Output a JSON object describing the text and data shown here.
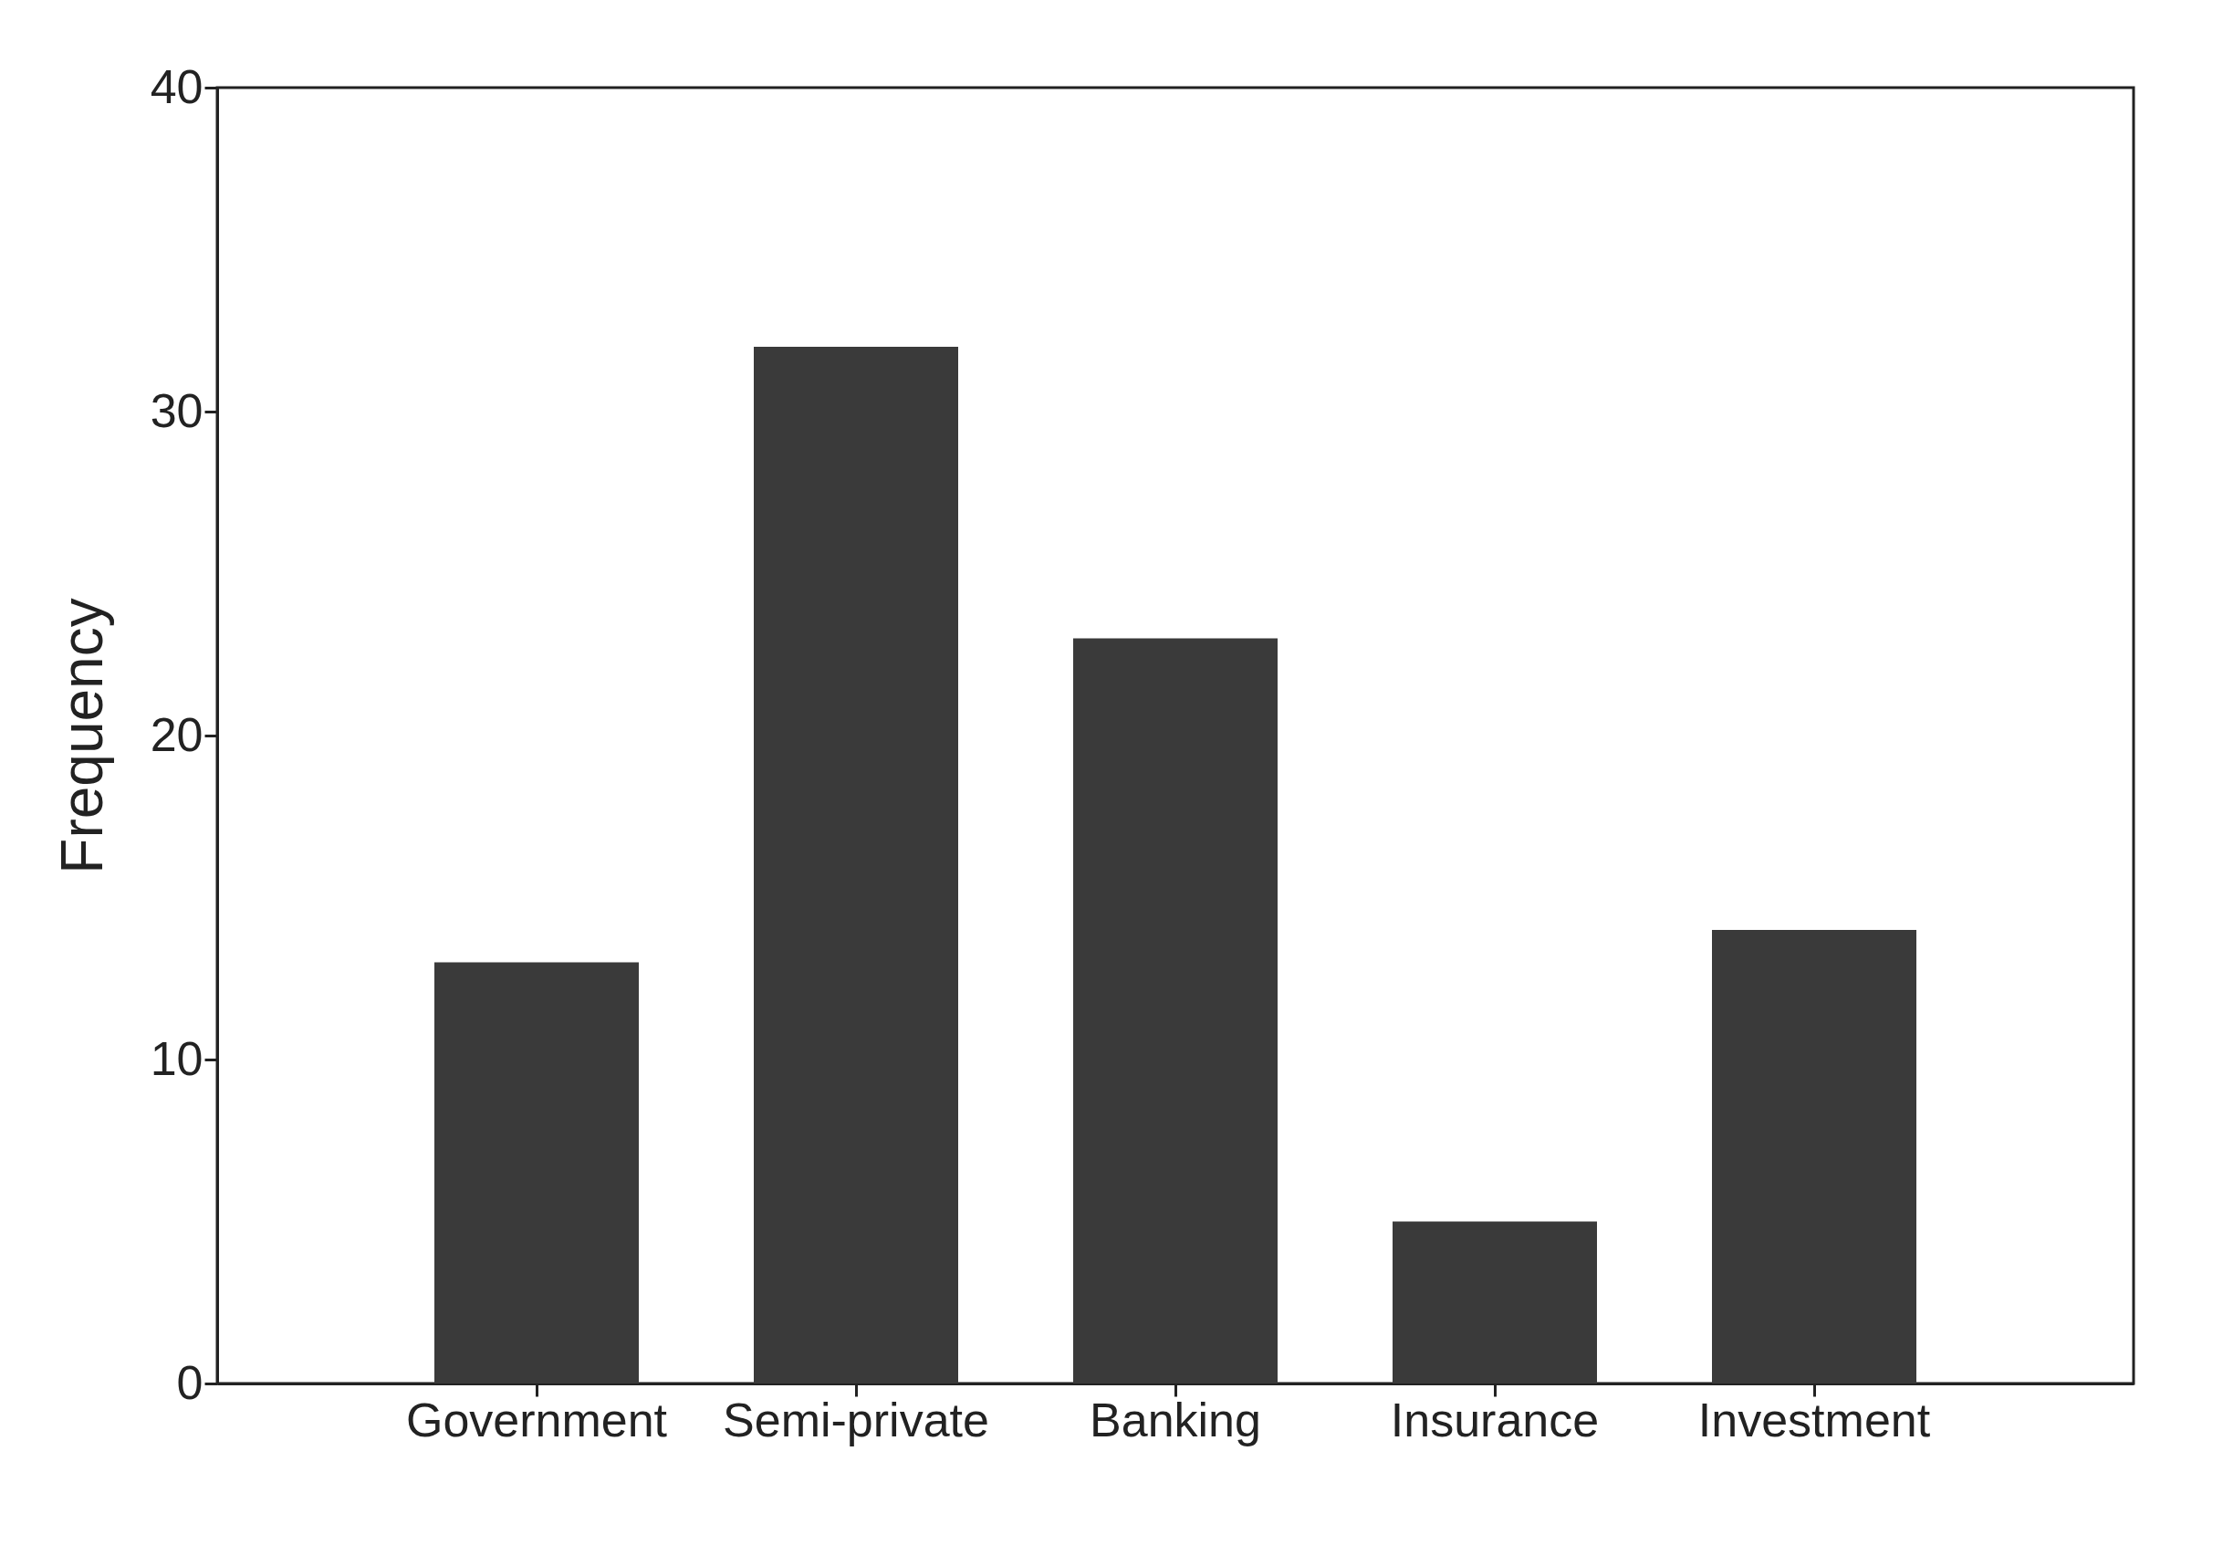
{
  "chart_data": {
    "type": "bar",
    "ylabel": "Frequency",
    "categories": [
      "Government",
      "Semi-private",
      "Banking",
      "Insurance",
      "Investment"
    ],
    "values": [
      13,
      32,
      23,
      5,
      14
    ],
    "color": "#3a3a3a",
    "ylim": [
      0,
      40
    ],
    "yticks": [
      0,
      10,
      20,
      30,
      40
    ],
    "grid": false
  }
}
